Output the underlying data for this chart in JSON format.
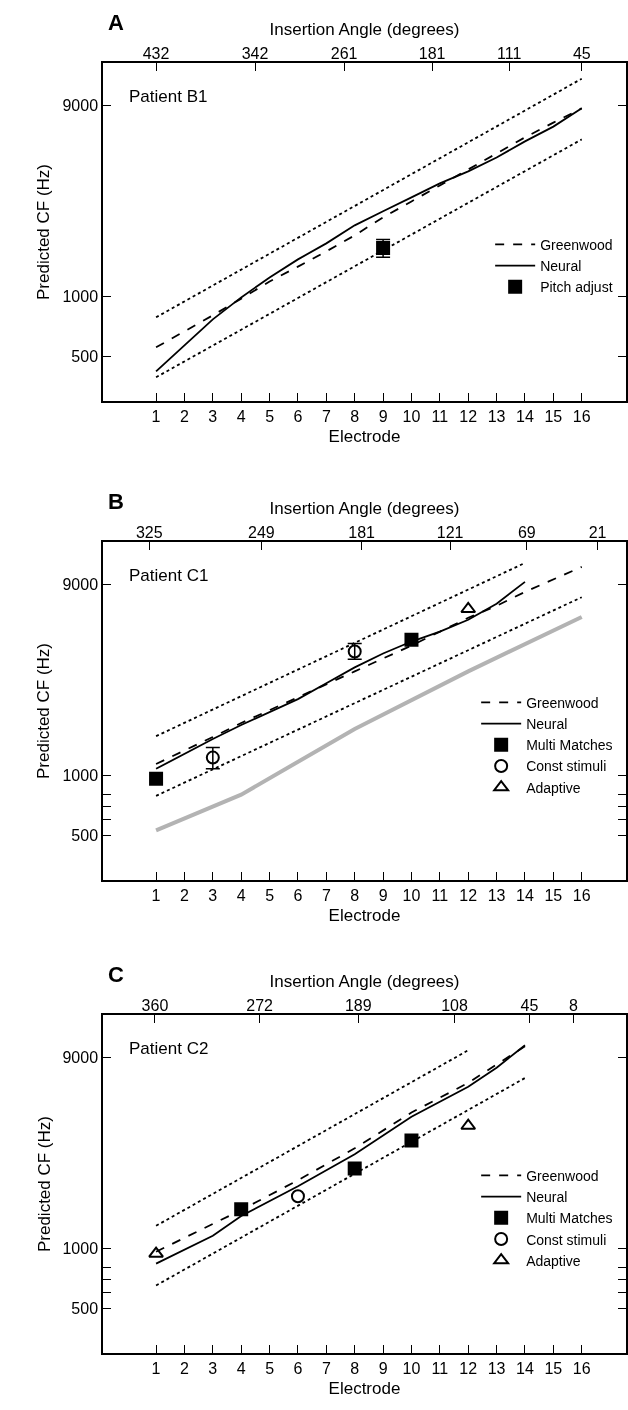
{
  "chart_data": [
    {
      "type": "line",
      "annotations": [
        "A",
        "Patient B1"
      ],
      "xlabel": "Electrode",
      "x2label": "Insertion Angle (degrees)",
      "ylabel": "Predicted CF (Hz)",
      "log": "y",
      "legend": "right",
      "xlim": [
        -0.87,
        17.56
      ],
      "xticks": [
        1,
        2,
        3,
        4,
        5,
        6,
        7,
        8,
        9,
        10,
        11,
        12,
        13,
        14,
        15,
        16
      ],
      "x2lim": [
        480.2,
        4.8
      ],
      "x2ticks": [
        432,
        342,
        261,
        181,
        111,
        45
      ],
      "ylim": [
        300,
        14600
      ],
      "yticks": [
        500,
        1000,
        9000
      ],
      "series": [
        {
          "name": "Greenwood",
          "color": "#000000",
          "line_style": "dashed",
          "marker": "none",
          "x": [
            1,
            2,
            3,
            4,
            5,
            6,
            7,
            8,
            9,
            10,
            11,
            12,
            13,
            14,
            15,
            16
          ],
          "values": [
            556,
            668,
            803,
            973,
            1185,
            1406,
            1675,
            2014,
            2477,
            2974,
            3575,
            4296,
            5165,
            6213,
            7360,
            8670
          ]
        },
        {
          "name": "Neural",
          "color": "#000000",
          "line_style": "solid",
          "marker": "none",
          "x": [
            1,
            2,
            3,
            4,
            5,
            6,
            7,
            8,
            9,
            10,
            11,
            12,
            13,
            14,
            15,
            16
          ],
          "values": [
            422,
            569,
            767,
            987,
            1242,
            1528,
            1837,
            2260,
            2655,
            3115,
            3660,
            4200,
            4930,
            5930,
            7030,
            8670
          ]
        },
        {
          "color": "#000000",
          "line_style": "dotted",
          "marker": "none",
          "x": [
            1,
            16
          ],
          "values": [
            785,
            12190
          ]
        },
        {
          "color": "#000000",
          "line_style": "dotted",
          "marker": "none",
          "x": [
            1,
            16
          ],
          "values": [
            394,
            6070
          ]
        },
        {
          "type": "scatter",
          "name": "Pitch adjust",
          "color": "#000000",
          "marker": "square",
          "x": [
            9
          ],
          "values": [
            1740
          ],
          "errors": [
            [
              1565,
              1920
            ]
          ]
        }
      ]
    },
    {
      "type": "line",
      "annotations": [
        "B",
        "Patient C1"
      ],
      "xlabel": "Electrode",
      "x2label": "Insertion Angle (degrees)",
      "ylabel": "Predicted CF (Hz)",
      "log": "y",
      "legend": "right",
      "xlim": [
        -0.87,
        17.56
      ],
      "xticks": [
        1,
        2,
        3,
        4,
        5,
        6,
        7,
        8,
        9,
        10,
        11,
        12,
        13,
        14,
        15,
        16
      ],
      "x2lim": [
        356.4,
        1.7
      ],
      "x2ticks": [
        325,
        249,
        181,
        121,
        69,
        21
      ],
      "ylim": [
        300,
        14600
      ],
      "yticks": [
        500,
        {
          "value": 600,
          "label": null
        },
        {
          "value": 700,
          "label": null
        },
        {
          "value": 800,
          "label": null
        },
        1000,
        9000
      ],
      "series": [
        {
          "name": "Greenwood",
          "color": "#000000",
          "line_style": "dashed",
          "marker": "none",
          "x": [
            1,
            3,
            4,
            6,
            8,
            10,
            12,
            13,
            14,
            16
          ],
          "values": [
            1138,
            1552,
            1823,
            2450,
            3300,
            4440,
            6110,
            7010,
            8230,
            10970
          ]
        },
        {
          "name": "Neural",
          "color": "#000000",
          "line_style": "solid",
          "marker": "none",
          "x": [
            1,
            3,
            4,
            6,
            7,
            8,
            9,
            10,
            11,
            12,
            13,
            14
          ],
          "values": [
            1077,
            1517,
            1782,
            2400,
            2880,
            3455,
            4055,
            4650,
            5210,
            5970,
            7180,
            9230
          ]
        },
        {
          "color": "#000000",
          "line_style": "dotted",
          "marker": "none",
          "x": [
            1,
            14
          ],
          "values": [
            1567,
            11480
          ]
        },
        {
          "color": "#000000",
          "line_style": "dotted",
          "marker": "none",
          "x": [
            1,
            16
          ],
          "values": [
            789,
            7740
          ]
        },
        {
          "color": "#b3b3b3",
          "line_style": "solid",
          "marker": "none",
          "x": [
            1,
            4,
            8,
            12,
            16
          ],
          "values": [
            531,
            800,
            1702,
            3300,
            6170
          ]
        },
        {
          "type": "scatter",
          "name": "Multi Matches",
          "color": "#000000",
          "marker": "square",
          "x": [
            1,
            10
          ],
          "values": [
            961,
            4750
          ]
        },
        {
          "type": "scatter",
          "name": "Const stimuli",
          "color": "#000000",
          "marker": "circle",
          "x": [
            3,
            8
          ],
          "values": [
            1225,
            4150
          ],
          "errors": [
            [
              1077,
              1374
            ],
            [
              3790,
              4540
            ]
          ]
        },
        {
          "type": "scatter",
          "name": "Adaptive",
          "color": "#000000",
          "marker": "triangle",
          "x": [
            12
          ],
          "values": [
            6760
          ]
        }
      ]
    },
    {
      "type": "line",
      "annotations": [
        "C",
        "Patient C2"
      ],
      "xlabel": "Electrode",
      "x2label": "Insertion Angle (degrees)",
      "ylabel": "Predicted CF (Hz)",
      "log": "y",
      "legend": "right",
      "xlim": [
        -0.87,
        17.56
      ],
      "xticks": [
        1,
        2,
        3,
        4,
        5,
        6,
        7,
        8,
        9,
        10,
        11,
        12,
        13,
        14,
        15,
        16
      ],
      "x2lim": [
        403.7,
        -36.2
      ],
      "x2ticks": [
        360,
        272,
        189,
        108,
        45,
        8
      ],
      "ylim": [
        300,
        14600
      ],
      "yticks": [
        500,
        {
          "value": 600,
          "label": null
        },
        {
          "value": 700,
          "label": null
        },
        {
          "value": 800,
          "label": null
        },
        1000,
        9000
      ],
      "series": [
        {
          "name": "Greenwood",
          "color": "#000000",
          "line_style": "dashed",
          "marker": "none",
          "x": [
            1,
            4,
            6,
            8,
            10,
            12,
            14
          ],
          "values": [
            961,
            1553,
            2187,
            3155,
            4760,
            6700,
            10200
          ]
        },
        {
          "name": "Neural",
          "color": "#000000",
          "line_style": "solid",
          "marker": "none",
          "x": [
            1,
            3,
            4,
            6,
            8,
            10,
            12,
            13,
            14
          ],
          "values": [
            838,
            1154,
            1449,
            2041,
            2945,
            4540,
            6400,
            7970,
            10320
          ]
        },
        {
          "color": "#000000",
          "line_style": "dotted",
          "marker": "none",
          "x": [
            1,
            12
          ],
          "values": [
            1295,
            9740
          ]
        },
        {
          "color": "#000000",
          "line_style": "dotted",
          "marker": "none",
          "x": [
            1,
            14
          ],
          "values": [
            652,
            7080
          ]
        },
        {
          "type": "scatter",
          "name": "Multi Matches",
          "color": "#000000",
          "marker": "square",
          "x": [
            4,
            8,
            10
          ],
          "values": [
            1566,
            2506,
            3455
          ]
        },
        {
          "type": "scatter",
          "name": "Const stimuli",
          "color": "#000000",
          "marker": "circle",
          "x": [
            6
          ],
          "values": [
            1820
          ]
        },
        {
          "type": "scatter",
          "name": "Adaptive",
          "color": "#000000",
          "marker": "triangle",
          "x": [
            1,
            12
          ],
          "values": [
            940,
            4090
          ]
        }
      ]
    }
  ]
}
